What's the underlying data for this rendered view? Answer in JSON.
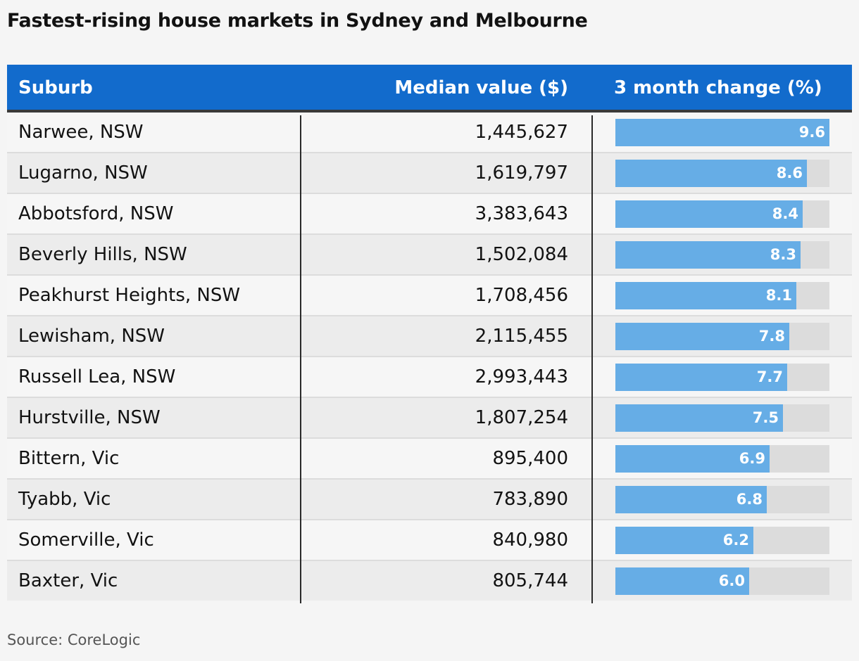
{
  "title": "Fastest-rising house markets in Sydney and Melbourne",
  "source": "Source: CoreLogic",
  "colors": {
    "header_bg": "#126bcc",
    "bar_fill": "#66ade6",
    "bar_track": "#dcdcdc"
  },
  "chart_data": {
    "type": "table",
    "title": "Fastest-rising house markets in Sydney and Melbourne",
    "columns": [
      "Suburb",
      "Median value ($)",
      "3 month change (%)"
    ],
    "bar_max": 9.6,
    "rows": [
      {
        "suburb": "Narwee, NSW",
        "median": "1,445,627",
        "change": 9.6,
        "change_label": "9.6"
      },
      {
        "suburb": "Lugarno, NSW",
        "median": "1,619,797",
        "change": 8.6,
        "change_label": "8.6"
      },
      {
        "suburb": "Abbotsford, NSW",
        "median": "3,383,643",
        "change": 8.4,
        "change_label": "8.4"
      },
      {
        "suburb": "Beverly Hills, NSW",
        "median": "1,502,084",
        "change": 8.3,
        "change_label": "8.3"
      },
      {
        "suburb": "Peakhurst Heights, NSW",
        "median": "1,708,456",
        "change": 8.1,
        "change_label": "8.1"
      },
      {
        "suburb": "Lewisham, NSW",
        "median": "2,115,455",
        "change": 7.8,
        "change_label": "7.8"
      },
      {
        "suburb": "Russell Lea, NSW",
        "median": "2,993,443",
        "change": 7.7,
        "change_label": "7.7"
      },
      {
        "suburb": "Hurstville, NSW",
        "median": "1,807,254",
        "change": 7.5,
        "change_label": "7.5"
      },
      {
        "suburb": "Bittern, Vic",
        "median": "895,400",
        "change": 6.9,
        "change_label": "6.9"
      },
      {
        "suburb": "Tyabb, Vic",
        "median": "783,890",
        "change": 6.8,
        "change_label": "6.8"
      },
      {
        "suburb": "Somerville, Vic",
        "median": "840,980",
        "change": 6.2,
        "change_label": "6.2"
      },
      {
        "suburb": "Baxter, Vic",
        "median": "805,744",
        "change": 6.0,
        "change_label": "6.0"
      }
    ]
  }
}
